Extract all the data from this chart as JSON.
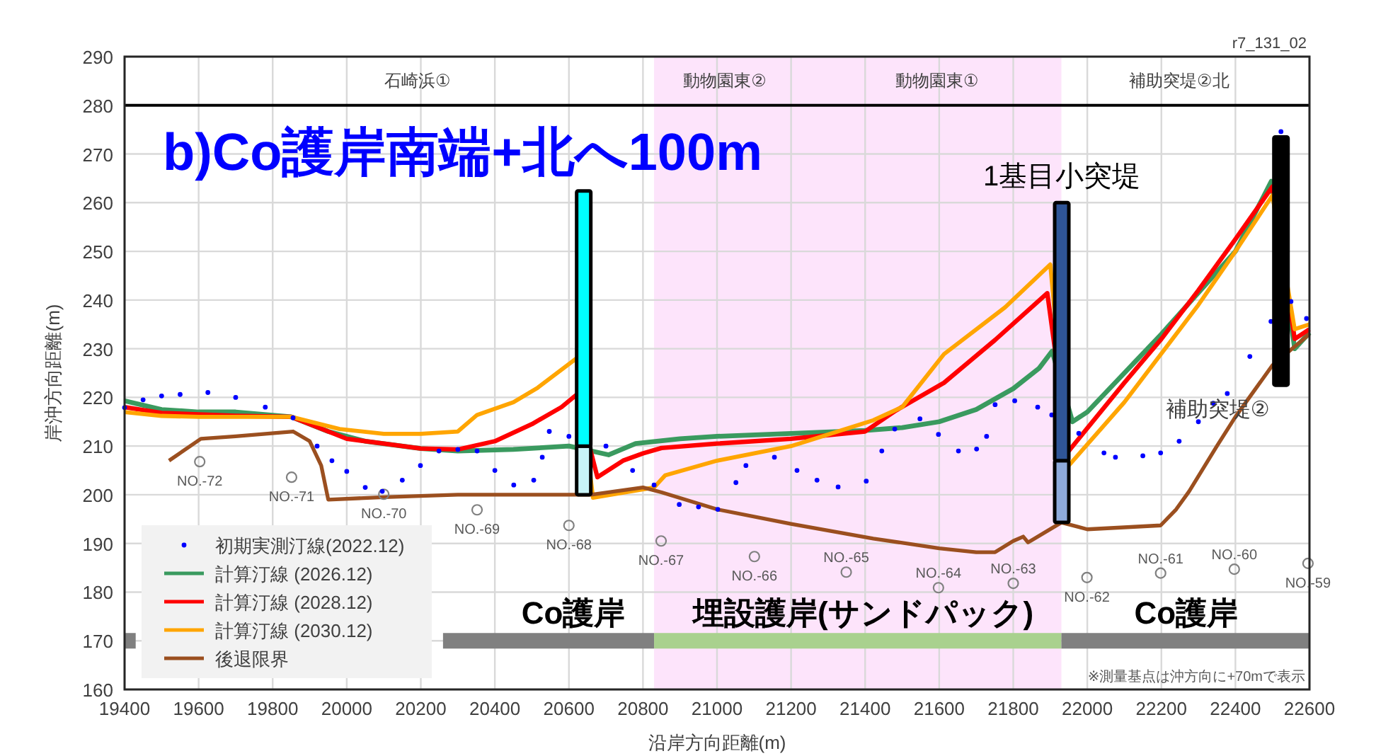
{
  "chart_data": {
    "type": "line",
    "title": "b)Co護岸南端+北へ100m",
    "xlabel": "沿岸方向距離(m)",
    "ylabel": "岸沖方向距離(m)",
    "xlim": [
      19400,
      22600
    ],
    "xticks": [
      19400,
      19600,
      19800,
      20000,
      20200,
      20400,
      20600,
      20800,
      21000,
      21200,
      21400,
      21600,
      21800,
      22000,
      22200,
      22400,
      22600
    ],
    "ylim": [
      160,
      290
    ],
    "yticks": [
      160,
      170,
      180,
      190,
      200,
      210,
      220,
      230,
      240,
      250,
      260,
      270,
      280,
      290
    ],
    "grid": true,
    "legend": "bottom left",
    "bands": [
      {
        "axis": "x",
        "from": 20830,
        "to": 21930,
        "color": "#fde4fb"
      }
    ],
    "ref_lines": [
      {
        "axis": "y",
        "value": 280,
        "color": "#000000"
      }
    ],
    "series": [
      {
        "type": "line",
        "color": "#808080",
        "x": [
          19400,
          19430
        ],
        "values": [
          170,
          170
        ]
      },
      {
        "type": "line",
        "color": "#808080",
        "x": [
          20260,
          20830
        ],
        "values": [
          170,
          170
        ]
      },
      {
        "type": "line",
        "color": "#a9d18e",
        "x": [
          20830,
          21930
        ],
        "values": [
          170,
          170
        ]
      },
      {
        "type": "line",
        "color": "#808080",
        "x": [
          21930,
          22600
        ],
        "values": [
          170,
          170
        ]
      },
      {
        "type": "scatter",
        "marker": "circle",
        "color": "#808080",
        "x": [
          19603,
          19851,
          20100,
          20352,
          20600,
          20849,
          21101,
          21349,
          21598,
          21800,
          21999,
          22198,
          22397,
          22596
        ],
        "values": [
          206.8,
          203.6,
          200.1,
          196.9,
          193.7,
          190.5,
          187.3,
          184.1,
          180.9,
          181.8,
          183,
          183.9,
          184.7,
          185.9
        ]
      },
      {
        "type": "scatter",
        "name": "初期実測汀線(2022.12)",
        "marker": "circle",
        "color": "#0000ff",
        "x": [
          19400,
          19450,
          19500,
          19550,
          19625,
          19700,
          19780,
          19855,
          19920,
          19960,
          20000,
          20050,
          20096,
          20150,
          20199,
          20249,
          20300,
          20352,
          20400,
          20451,
          20505,
          20528,
          20547,
          20600,
          20700,
          20772,
          20830,
          20898,
          20950,
          21002,
          21051,
          21078,
          21155,
          21216,
          21270,
          21327,
          21403,
          21445,
          21480,
          21548,
          21598,
          21652,
          21701,
          21728,
          21751,
          21804,
          21866,
          21904,
          21977,
          22045,
          22076,
          22150,
          22198,
          22248,
          22300,
          22340,
          22378,
          22439,
          22496,
          22523,
          22550,
          22592
        ],
        "values": [
          217.9,
          219.5,
          220.3,
          220.6,
          221,
          220,
          218,
          215.8,
          210,
          207,
          204.8,
          201.5,
          200.7,
          203,
          206,
          209,
          209.3,
          209,
          205,
          202,
          203,
          207.7,
          213,
          212,
          210,
          205,
          202,
          198,
          197.5,
          197,
          202.5,
          206,
          207.7,
          205,
          203,
          201.6,
          202.8,
          209,
          213.5,
          215.6,
          212.4,
          209,
          209.4,
          212,
          218.5,
          219.3,
          218,
          216.4,
          212.6,
          208.6,
          207.7,
          208,
          208.6,
          211,
          215,
          218.8,
          220.8,
          228.4,
          235.6,
          274.6,
          239.7,
          236.2
        ]
      },
      {
        "name": "計算汀線 (2026.12)",
        "color": "#3a9a5f",
        "x": [
          19400,
          19500,
          19600,
          19700,
          19850,
          19950,
          20050,
          20200,
          20300,
          20450,
          20600,
          20660,
          20707,
          20780,
          20900,
          21000,
          21200,
          21400,
          21500,
          21600,
          21700,
          21800,
          21870,
          21905,
          21960,
          22000,
          22100,
          22200,
          22300,
          22400,
          22497,
          22560,
          22600
        ],
        "values": [
          219.3,
          217.5,
          217,
          217,
          216,
          213,
          211,
          209.5,
          209,
          209.3,
          210,
          209,
          208.2,
          210.5,
          211.5,
          212,
          212.6,
          213.2,
          213.8,
          215,
          217.5,
          221.8,
          226,
          229.5,
          215,
          217,
          225,
          233,
          241.5,
          250,
          264.4,
          230,
          233.3
        ]
      },
      {
        "name": "計算汀線 (2028.12)",
        "color": "#ff0000",
        "x": [
          19400,
          19500,
          19600,
          19700,
          19850,
          20000,
          20100,
          20200,
          20300,
          20400,
          20500,
          20580,
          20620,
          20677,
          20746,
          20800,
          20850,
          21000,
          21200,
          21400,
          21483,
          21613,
          21751,
          21892,
          21950,
          22100,
          22200,
          22300,
          22400,
          22500,
          22560,
          22600
        ],
        "values": [
          218,
          216.8,
          216.5,
          216.2,
          216,
          211.5,
          210.5,
          209.5,
          209.3,
          211,
          214.5,
          218,
          220.5,
          203.6,
          207,
          208.5,
          209.6,
          210.5,
          211.5,
          213,
          217.3,
          223,
          231.8,
          241.4,
          209,
          223,
          232,
          242,
          252.5,
          263.3,
          232,
          234
        ]
      },
      {
        "name": "計算汀線 (2030.12)",
        "color": "#ffa500",
        "x": [
          19400,
          19500,
          19600,
          19700,
          19850,
          19981,
          20100,
          20200,
          20300,
          20352,
          20450,
          20516,
          20620,
          20665,
          20830,
          20860,
          21000,
          21200,
          21422,
          21500,
          21613,
          21778,
          21900,
          21950,
          22100,
          22200,
          22300,
          22400,
          22500,
          22560,
          22600
        ],
        "values": [
          217,
          216.2,
          216,
          216,
          216,
          213.5,
          212.5,
          212.5,
          213,
          216.4,
          219,
          222,
          228,
          199.4,
          201.5,
          204,
          207,
          210,
          215.3,
          218,
          228.9,
          238.5,
          247.3,
          206,
          219,
          229,
          239,
          250,
          261.5,
          234,
          235
        ]
      },
      {
        "name": "後退限界",
        "color": "#9b4f1f",
        "x": [
          19520,
          19606,
          19700,
          19855,
          19900,
          19931,
          19950,
          20100,
          20300,
          20660,
          20800,
          20850,
          21000,
          21200,
          21422,
          21600,
          21700,
          21751,
          21800,
          21827,
          21840,
          21930,
          22000,
          22198,
          22240,
          22275,
          22350,
          22400,
          22500,
          22600
        ],
        "values": [
          207,
          211.5,
          212,
          213,
          211,
          206,
          199,
          199.5,
          200,
          200,
          201.5,
          200.5,
          197,
          194,
          191,
          189,
          188.2,
          188.2,
          190.5,
          191.4,
          190.2,
          194.3,
          192.9,
          193.7,
          197,
          200.7,
          210,
          216,
          226.6,
          233
        ]
      },
      {
        "type": "bar",
        "x": [
          20640,
          21931
        ],
        "base": [
          200,
          194.3
        ],
        "values": [
          10,
          12.7
        ],
        "colors": [
          "#c8f4f8",
          "#8eaadb"
        ]
      },
      {
        "type": "bar",
        "x": [
          20640,
          21931,
          22523
        ],
        "base": [
          210,
          207,
          222.5
        ],
        "values": [
          52.4,
          53,
          51
        ],
        "colors": [
          "#00ffff",
          "#2f5597",
          "#000000"
        ]
      }
    ],
    "annotations": [
      {
        "text": "石崎浜①",
        "x": 20191,
        "y": 280
      },
      {
        "text": "動物園東②",
        "x": 21021,
        "y": 280
      },
      {
        "text": "動物園東①",
        "x": 21594,
        "y": 280
      },
      {
        "text": "補助突堤②北",
        "x": 22248,
        "y": 280
      },
      {
        "text": "1基目小突堤",
        "x": 21931,
        "y": 260
      },
      {
        "text": "補助突堤②",
        "x": 22523,
        "y": 222.5
      },
      {
        "text": "Co護岸",
        "x": 20612,
        "y": 170
      },
      {
        "text": "埋設護岸(サンドパック)",
        "x": 21395,
        "y": 170
      },
      {
        "text": "Co護岸",
        "x": 22267,
        "y": 170
      },
      {
        "text": "NO.-72",
        "x": 19603,
        "y": 206.8
      },
      {
        "text": "NO.-71",
        "x": 19851,
        "y": 203.6
      },
      {
        "text": "NO.-70",
        "x": 20100,
        "y": 200.1
      },
      {
        "text": "NO.-69",
        "x": 20352,
        "y": 196.9
      },
      {
        "text": "NO.-68",
        "x": 20600,
        "y": 193.7
      },
      {
        "text": "NO.-67",
        "x": 20849,
        "y": 190.5
      },
      {
        "text": "NO.-66",
        "x": 21101,
        "y": 187.3
      },
      {
        "text": "NO.-65",
        "x": 21349,
        "y": 184.1
      },
      {
        "text": "NO.-64",
        "x": 21598,
        "y": 180.9
      },
      {
        "text": "NO.-63",
        "x": 21800,
        "y": 181.8
      },
      {
        "text": "NO.-62",
        "x": 21999,
        "y": 183
      },
      {
        "text": "NO.-61",
        "x": 22198,
        "y": 183.9
      },
      {
        "text": "NO.-60",
        "x": 22397,
        "y": 184.7
      },
      {
        "text": "NO.-59",
        "x": 22596,
        "y": 185.9
      },
      "r7_131_02",
      "※測量基点は沖方向に+70mで表示"
    ]
  }
}
